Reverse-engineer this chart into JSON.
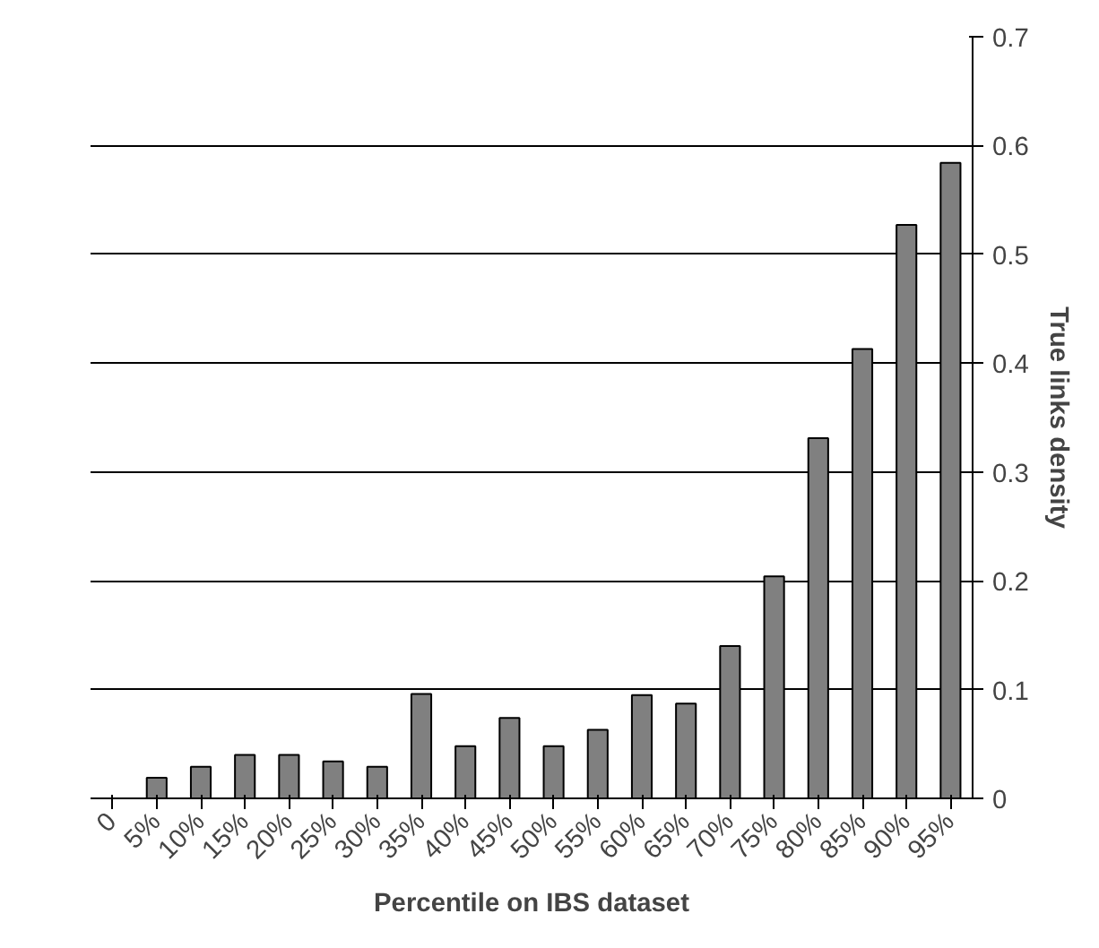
{
  "chart_data": {
    "type": "bar",
    "xlabel": "Percentile on IBS dataset",
    "ylabel": "True links density",
    "categories": [
      "0",
      "5%",
      "10%",
      "15%",
      "20%",
      "25%",
      "30%",
      "35%",
      "40%",
      "45%",
      "50%",
      "55%",
      "60%",
      "65%",
      "70%",
      "75%",
      "80%",
      "85%",
      "90%",
      "95%"
    ],
    "values": [
      null,
      0.019,
      0.029,
      0.04,
      0.04,
      0.034,
      0.029,
      0.096,
      0.048,
      0.074,
      0.048,
      0.063,
      0.095,
      0.087,
      0.14,
      0.204,
      0.331,
      0.413,
      0.527,
      0.584
    ],
    "color": "#808080",
    "ylim": [
      0,
      0.7
    ],
    "yticks": [
      0,
      0.1,
      0.2,
      0.3,
      0.4,
      0.5,
      0.6,
      0.7
    ],
    "grid": "y"
  }
}
